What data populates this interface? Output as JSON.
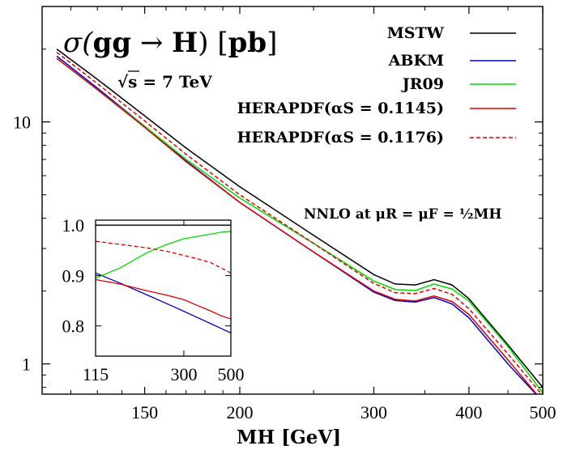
{
  "chart_data": [
    {
      "type": "line",
      "title": "σ(gg → H) [pb]",
      "subtitle": "√s = 7 TeV",
      "annotation": "NNLO at μR = μF = ½MH",
      "xlabel": "MH [GeV]",
      "ylabel": "",
      "xscale": "log",
      "yscale": "log",
      "xlim": [
        110,
        500
      ],
      "ylim": [
        0.75,
        30
      ],
      "xticks": [
        150,
        200,
        300,
        400,
        500
      ],
      "xtick_labels": [
        "150",
        "200",
        "300",
        "400",
        "500"
      ],
      "yticks": [
        1,
        10
      ],
      "ytick_labels": [
        "1",
        "10"
      ],
      "legend_position": "top-right",
      "x": [
        115,
        130,
        150,
        170,
        200,
        250,
        300,
        320,
        340,
        360,
        380,
        400,
        450,
        500
      ],
      "series": [
        {
          "name": "MSTW",
          "color": "#000000",
          "dash": "solid",
          "values": [
            20.0,
            15.0,
            10.6,
            7.8,
            5.4,
            3.4,
            2.34,
            2.14,
            2.12,
            2.23,
            2.12,
            1.86,
            1.2,
            0.8
          ]
        },
        {
          "name": "ABKM",
          "color": "#0000cc",
          "dash": "solid",
          "values": [
            18.7,
            13.8,
            9.6,
            6.9,
            4.65,
            2.9,
            1.98,
            1.83,
            1.8,
            1.88,
            1.77,
            1.55,
            1.0,
            0.7
          ]
        },
        {
          "name": "JR09",
          "color": "#00dd00",
          "dash": "solid",
          "values": [
            18.3,
            13.6,
            9.6,
            7.0,
            4.85,
            3.15,
            2.2,
            2.03,
            2.01,
            2.14,
            2.04,
            1.82,
            1.18,
            0.76
          ]
        },
        {
          "name": "HERAPDF(αS = 0.1145)",
          "color": "#dd0000",
          "dash": "solid",
          "values": [
            18.3,
            13.6,
            9.5,
            6.85,
            4.65,
            2.9,
            2.0,
            1.85,
            1.82,
            1.91,
            1.81,
            1.6,
            1.04,
            0.7
          ]
        },
        {
          "name": "HERAPDF(αS = 0.1176)",
          "color": "#dd0000",
          "dash": "dashed",
          "values": [
            19.4,
            14.4,
            10.1,
            7.35,
            5.0,
            3.15,
            2.15,
            1.97,
            1.95,
            2.05,
            1.94,
            1.69,
            1.1,
            0.74
          ]
        }
      ]
    },
    {
      "type": "line",
      "title": "",
      "xscale": "log",
      "xlim": [
        115,
        500
      ],
      "ylim": [
        0.74,
        1.01
      ],
      "xticks": [
        115,
        300,
        500
      ],
      "xtick_labels": [
        "115",
        "300",
        "500"
      ],
      "yticks": [
        0.8,
        0.9,
        1.0
      ],
      "ytick_labels": [
        "0.8",
        "0.9",
        "1.0"
      ],
      "x": [
        115,
        150,
        200,
        250,
        300,
        350,
        400,
        450,
        500
      ],
      "series": [
        {
          "name": "MSTW",
          "color": "#000000",
          "dash": "solid",
          "values": [
            1.0,
            1.0,
            1.0,
            1.0,
            1.0,
            1.0,
            1.0,
            1.0,
            1.0
          ]
        },
        {
          "name": "ABKM",
          "color": "#0000cc",
          "dash": "solid",
          "values": [
            0.905,
            0.885,
            0.862,
            0.844,
            0.829,
            0.816,
            0.805,
            0.795,
            0.786
          ]
        },
        {
          "name": "JR09",
          "color": "#00dd00",
          "dash": "solid",
          "values": [
            0.895,
            0.915,
            0.945,
            0.962,
            0.973,
            0.978,
            0.982,
            0.986,
            0.988
          ]
        },
        {
          "name": "HERAPDF(αS = 0.1145)",
          "color": "#dd0000",
          "dash": "solid",
          "values": [
            0.892,
            0.883,
            0.87,
            0.861,
            0.852,
            0.84,
            0.83,
            0.82,
            0.814
          ]
        },
        {
          "name": "HERAPDF(αS = 0.1176)",
          "color": "#dd0000",
          "dash": "dashed",
          "values": [
            0.968,
            0.962,
            0.955,
            0.948,
            0.94,
            0.933,
            0.926,
            0.915,
            0.905
          ]
        }
      ]
    }
  ]
}
